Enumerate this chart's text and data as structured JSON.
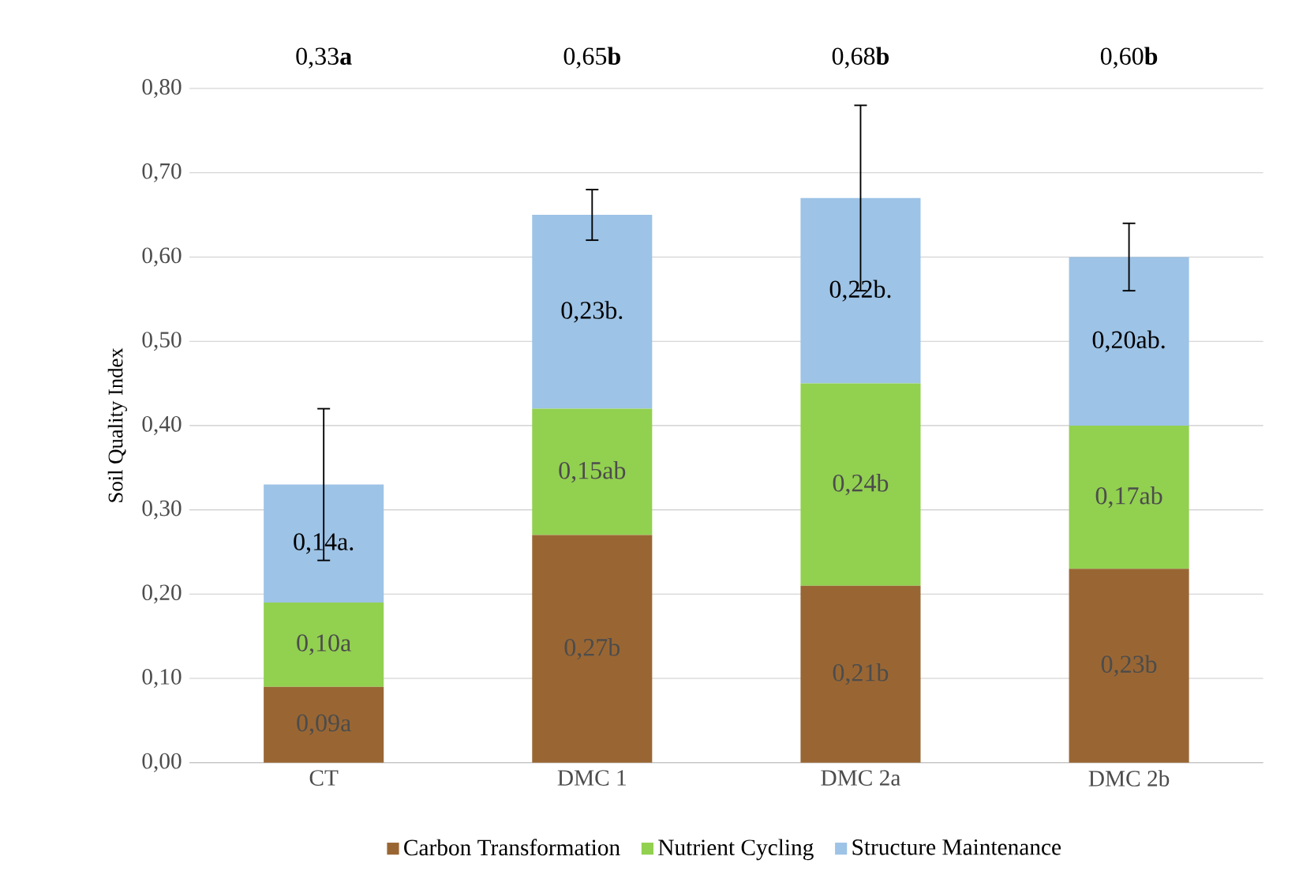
{
  "chart_data": {
    "type": "bar",
    "stacked": true,
    "ylabel": "Soil Quality Index",
    "categories": [
      "CT",
      "DMC 1",
      "DMC 2a",
      "DMC 2b"
    ],
    "series": [
      {
        "name": "Carbon Transformation",
        "color": "#996633",
        "values": [
          0.09,
          0.27,
          0.21,
          0.23
        ],
        "value_labels": [
          "0,09a",
          "0,27b",
          "0,21b",
          "0,23b"
        ]
      },
      {
        "name": "Nutrient Cycling",
        "color": "#92d050",
        "values": [
          0.1,
          0.15,
          0.24,
          0.17
        ],
        "value_labels": [
          "0,10a",
          "0,15ab",
          "0,24b",
          "0,17ab"
        ]
      },
      {
        "name": "Structure Maintenance",
        "color": "#9dc3e6",
        "values": [
          0.14,
          0.23,
          0.22,
          0.2
        ],
        "value_labels": [
          "0,14a.",
          "0,23b.",
          "0,22b.",
          "0,20ab."
        ],
        "errors": [
          0.09,
          0.03,
          0.11,
          0.04
        ]
      }
    ],
    "annotations": [
      "0,33**a**",
      "0,65**b**",
      "0,68**b**",
      "0,60**b**"
    ],
    "ylim": [
      0,
      0.8
    ],
    "yticks": [
      {
        "value": 0,
        "label": "0,00"
      },
      {
        "value": 0.1,
        "label": "0,10"
      },
      {
        "value": 0.2,
        "label": "0,20"
      },
      {
        "value": 0.3,
        "label": "0,30"
      },
      {
        "value": 0.4,
        "label": "0,40"
      },
      {
        "value": 0.5,
        "label": "0,50"
      },
      {
        "value": 0.6,
        "label": "0,60"
      },
      {
        "value": 0.7,
        "label": "0,70"
      },
      {
        "value": 0.8,
        "label": "0,80"
      }
    ],
    "grid": "y",
    "legend": "bottom"
  }
}
